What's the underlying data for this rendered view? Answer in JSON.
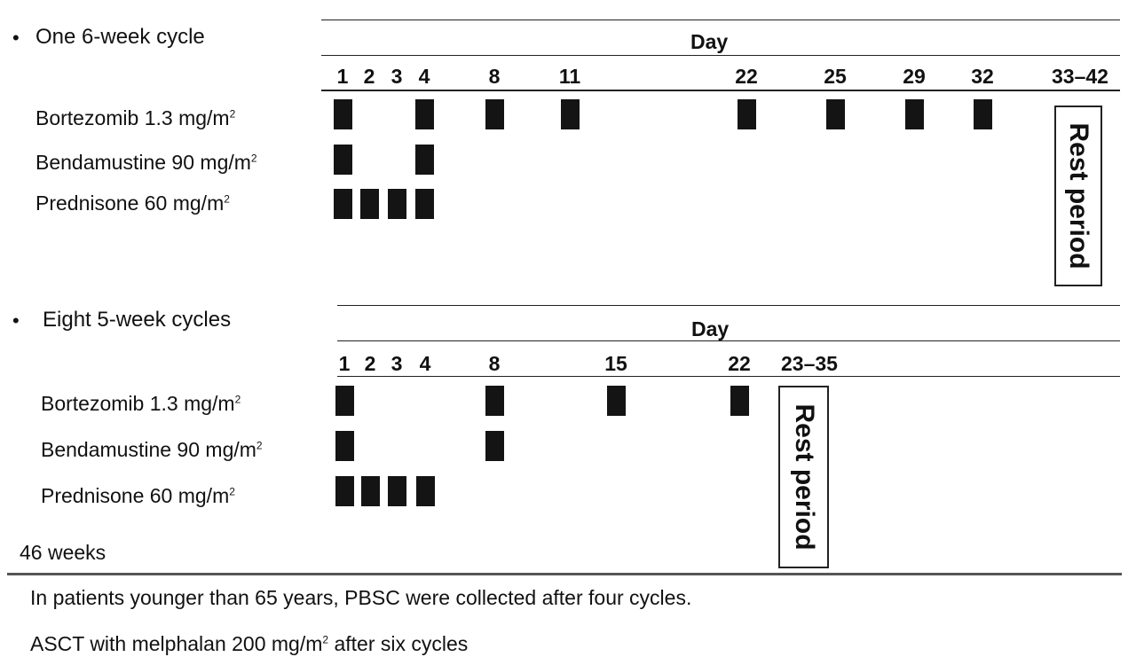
{
  "cycle1": {
    "bullet": "•",
    "title": "One 6-week cycle",
    "day_header": "Day",
    "days": [
      "1",
      "2",
      "3",
      "4",
      "8",
      "11",
      "22",
      "25",
      "29",
      "32",
      "33–42"
    ],
    "drugs": [
      {
        "name": "Bortezomib 1.3 mg/m",
        "sup": "2",
        "dose_days": [
          "1",
          "4",
          "8",
          "11",
          "22",
          "25",
          "29",
          "32"
        ]
      },
      {
        "name": "Bendamustine 90 mg/m",
        "sup": "2",
        "dose_days": [
          "1",
          "4"
        ]
      },
      {
        "name": "Prednisone 60 mg/m",
        "sup": "2",
        "dose_days": [
          "1",
          "2",
          "3",
          "4"
        ]
      }
    ],
    "rest_label": "Rest period"
  },
  "cycle2": {
    "bullet": "•",
    "title": "Eight 5-week cycles",
    "day_header": "Day",
    "days": [
      "1",
      "2",
      "3",
      "4",
      "8",
      "15",
      "22",
      "23–35"
    ],
    "drugs": [
      {
        "name": "Bortezomib 1.3 mg/m",
        "sup": "2",
        "dose_days": [
          "1",
          "8",
          "15",
          "22"
        ]
      },
      {
        "name": "Bendamustine 90 mg/m",
        "sup": "2",
        "dose_days": [
          "1",
          "8"
        ]
      },
      {
        "name": "Prednisone 60 mg/m",
        "sup": "2",
        "dose_days": [
          "1",
          "2",
          "3",
          "4"
        ]
      }
    ],
    "rest_label": "Rest period"
  },
  "duration_label": "46 weeks",
  "notes": {
    "pbsc": "In patients younger than 65 years, PBSC were collected after four cycles.",
    "asct_pre": "ASCT with melphalan 200 mg/m",
    "asct_sup": "2",
    "asct_post": " after six cycles"
  }
}
